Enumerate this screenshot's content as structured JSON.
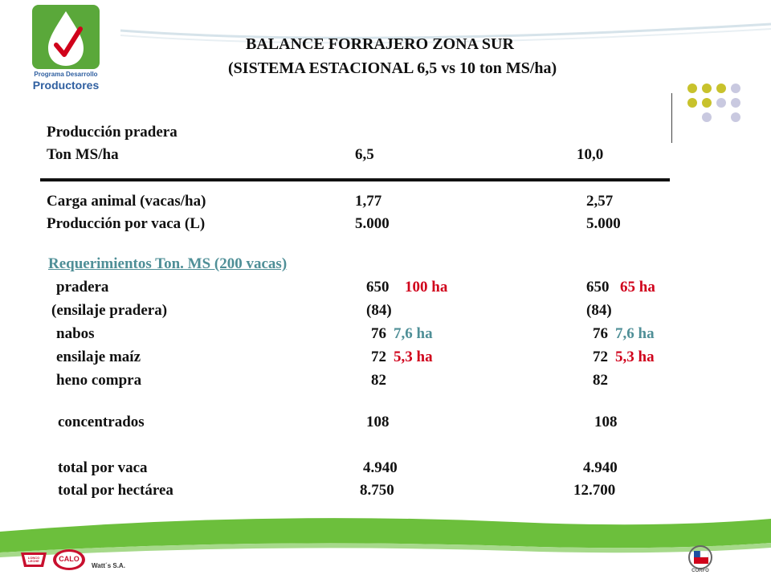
{
  "logo": {
    "line1": "Programa Desarrollo",
    "line2": "Productores"
  },
  "title": {
    "line1": "BALANCE FORRAJERO ZONA SUR",
    "line2": "(SISTEMA ESTACIONAL   6,5 vs 10 ton MS/ha)"
  },
  "colors": {
    "green_band": "#6cbf3c",
    "dot_olive": "#c8c22c",
    "dot_lavender": "#c9c9e0",
    "red_text": "#d0021b",
    "teal_text": "#4f8f97"
  },
  "production": {
    "label_line1": "Producción pradera",
    "label_line2": "Ton MS/ha",
    "col1": "6,5",
    "col2": "10,0"
  },
  "carga": {
    "label": "Carga animal  (vacas/ha)",
    "col1": "1,77",
    "col2": "2,57"
  },
  "prod_vaca": {
    "label": "Producción por vaca  (L)",
    "col1": "5.000",
    "col2": "5.000"
  },
  "requerimientos": {
    "heading": "Requerimientos Ton. MS (200 vacas)",
    "rows": [
      {
        "label": "pradera",
        "v1": "650",
        "h1": "100 ha",
        "v2": "650",
        "h2": "65 ha",
        "color1": "red",
        "color2": "red"
      },
      {
        "label": "(ensilaje pradera)",
        "v1": "(84)",
        "h1": "",
        "v2": "(84)",
        "h2": ""
      },
      {
        "label": "nabos",
        "v1": "76",
        "h1": "7,6 ha",
        "v2": "76",
        "h2": "7,6 ha",
        "color1": "teal",
        "color2": "teal"
      },
      {
        "label": "ensilaje maíz",
        "v1": "72",
        "h1": "5,3 ha",
        "v2": "72",
        "h2": "5,3 ha",
        "color1": "red",
        "color2": "red"
      },
      {
        "label": "heno compra",
        "v1": "82",
        "h1": "",
        "v2": "82",
        "h2": ""
      }
    ]
  },
  "concentrados": {
    "label": "concentrados",
    "col1": "108",
    "col2": "108"
  },
  "total_vaca": {
    "label": "total por vaca",
    "col1": "4.940",
    "col2": "4.940"
  },
  "total_ha": {
    "label": "total por hectárea",
    "col1": "8.750",
    "col2": "12.700"
  },
  "footer": {
    "brand1": "LONCO LECHE",
    "brand2": "CALO",
    "company": "Watt´s S.A.",
    "corfo": "CORFO"
  }
}
